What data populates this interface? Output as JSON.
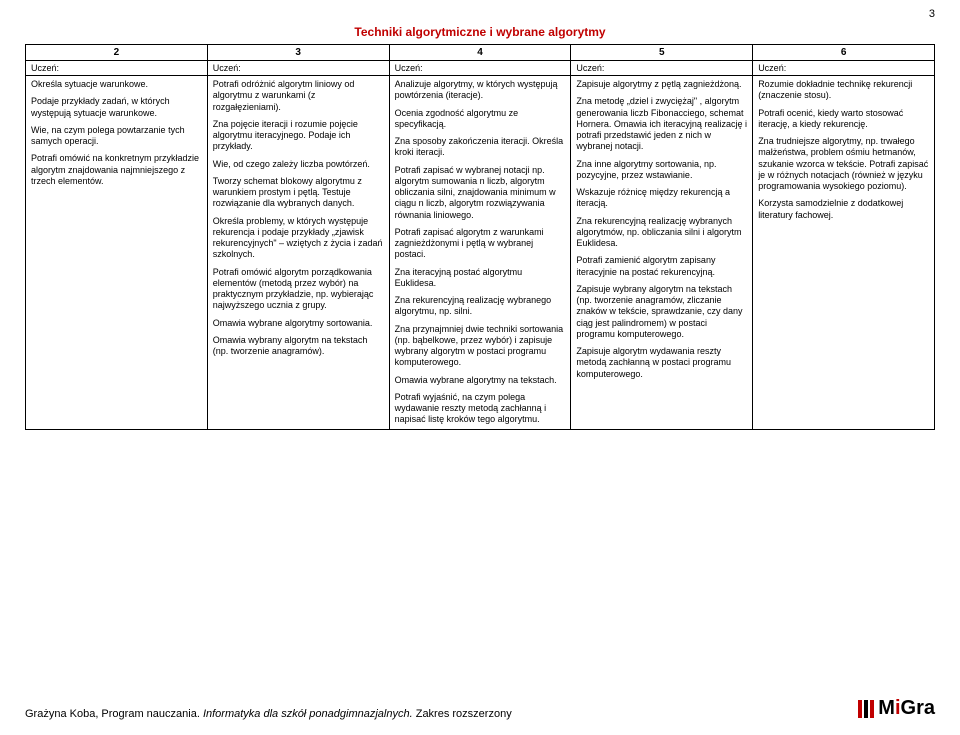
{
  "page_number": "3",
  "title": "Techniki algorytmiczne i wybrane algorytmy",
  "headers": [
    "2",
    "3",
    "4",
    "5",
    "6"
  ],
  "uczen_label": "Uczeń:",
  "columns": {
    "c2": [
      "Określa sytuacje warunkowe.",
      "Podaje przykłady zadań, w których występują sytuacje warunkowe.",
      "Wie, na czym polega powtarzanie tych samych operacji.",
      "Potrafi omówić na konkretnym przykładzie algorytm znajdowania najmniejszego z trzech elementów."
    ],
    "c3": [
      "Potrafi odróżnić algorytm liniowy od algorytmu z warunkami (z rozgałęzieniami).",
      "Zna pojęcie iteracji i rozumie pojęcie algorytmu iteracyjnego. Podaje ich przykłady.",
      "Wie, od czego zależy liczba powtórzeń.",
      "Tworzy schemat blokowy algorytmu z warunkiem prostym i pętlą. Testuje rozwiązanie dla wybranych danych.",
      "Określa problemy, w których występuje rekurencja i podaje przykłady „zjawisk rekurencyjnych\" – wziętych z życia i zadań szkolnych.",
      "Potrafi omówić algorytm porządkowania elementów (metodą przez wybór) na praktycznym przykładzie, np. wybierając najwyższego ucznia z grupy.",
      "Omawia wybrane algorytmy sortowania.",
      "Omawia wybrany algorytm na tekstach (np. tworzenie anagramów)."
    ],
    "c4": [
      "Analizuje algorytmy, w których występują powtórzenia (iteracje).",
      "Ocenia zgodność algorytmu ze specyfikacją.",
      "Zna sposoby zakończenia iteracji. Określa kroki iteracji.",
      "Potrafi zapisać w wybranej notacji np. algorytm sumowania n liczb, algorytm obliczania silni, znajdowania minimum w ciągu n liczb, algorytm rozwiązywania równania liniowego.",
      "Potrafi zapisać algorytm z warunkami zagnieżdżonymi i pętlą w wybranej postaci.",
      "Zna iteracyjną postać algorytmu Euklidesa.",
      "Zna rekurencyjną realizację wybranego algorytmu, np. silni.",
      "Zna przynajmniej dwie techniki sortowania (np. bąbelkowe, przez wybór) i zapisuje wybrany algorytm w postaci programu komputerowego.",
      "Omawia wybrane algorytmy na tekstach.",
      "Potrafi wyjaśnić, na czym polega wydawanie reszty metodą zachłanną i napisać listę kroków tego algorytmu."
    ],
    "c5": [
      "Zapisuje algorytmy z pętlą zagnieżdżoną.",
      "Zna metodę „dziel i zwyciężaj\" , algorytm generowania liczb Fibonacciego, schemat Hornera. Omawia ich iteracyjną realizację i potrafi przedstawić jeden z nich w wybranej notacji.",
      "Zna inne algorytmy sortowania, np. pozycyjne, przez wstawianie.",
      "Wskazuje różnicę między rekurencją a iteracją.",
      "Zna rekurencyjną realizację wybranych algorytmów, np. obliczania silni i algorytm Euklidesa.",
      "Potrafi zamienić algorytm zapisany iteracyjnie na postać rekurencyjną.",
      "Zapisuje wybrany algorytm na tekstach (np. tworzenie anagramów, zliczanie znaków w tekście, sprawdzanie, czy dany ciąg jest palindromem) w postaci programu komputerowego.",
      "Zapisuje algorytm wydawania reszty metodą zachłanną w postaci programu komputerowego."
    ],
    "c6": [
      "Rozumie dokładnie technikę rekurencji (znaczenie stosu).",
      "Potrafi ocenić, kiedy warto stosować iterację, a kiedy rekurencję.",
      "Zna trudniejsze algorytmy, np. trwałego małżeństwa, problem ośmiu hetmanów, szukanie wzorca w tekście. Potrafi zapisać je w różnych notacjach (również w języku programowania wysokiego poziomu).",
      "Korzysta samodzielnie z dodatkowej literatury fachowej."
    ]
  },
  "footer": {
    "author": "Grażyna Koba, Program nauczania. ",
    "book": "Informatyka dla szkół ponadgimnazjalnych. ",
    "scope": "Zakres rozszerzony",
    "logo_bar_colors": [
      "#c00000",
      "#000000",
      "#c00000"
    ],
    "logo_m1": "M",
    "logo_i": "i",
    "logo_g": "G",
    "logo_r": "r",
    "logo_a": "a"
  }
}
